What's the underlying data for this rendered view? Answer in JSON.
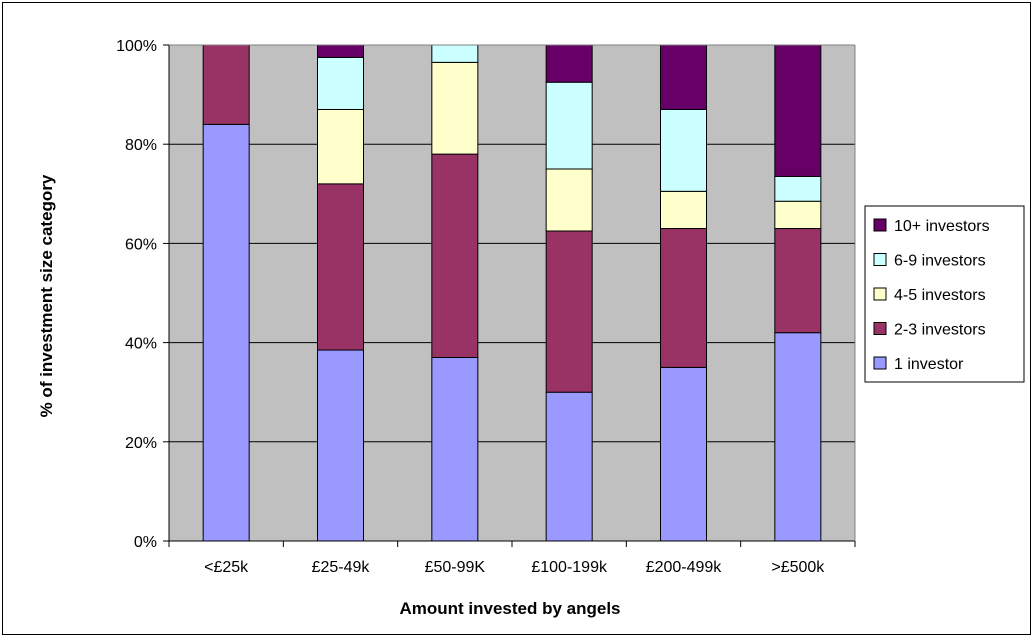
{
  "chart_data": {
    "type": "bar",
    "stacked": true,
    "title": "",
    "xlabel": "Amount invested by angels",
    "ylabel": "% of investment size category",
    "ylim": [
      0,
      100
    ],
    "y_ticks": [
      "0%",
      "20%",
      "40%",
      "60%",
      "80%",
      "100%"
    ],
    "grid": true,
    "legend_position": "right",
    "categories": [
      "<£25k",
      "£25-49k",
      "£50-99K",
      "£100-199k",
      "£200-499k",
      ">£500k"
    ],
    "series": [
      {
        "name": "1 investor",
        "color": "#9999FF",
        "values": [
          84,
          38.5,
          37,
          30,
          35,
          42
        ]
      },
      {
        "name": "2-3 investors",
        "color": "#993366",
        "values": [
          16,
          33.5,
          41,
          32.5,
          28,
          21
        ]
      },
      {
        "name": "4-5 investors",
        "color": "#FFFFCC",
        "values": [
          0,
          15,
          18.5,
          12.5,
          7.5,
          5.5
        ]
      },
      {
        "name": "6-9 investors",
        "color": "#CCFFFF",
        "values": [
          0,
          10.5,
          3.5,
          17.5,
          16.5,
          5
        ]
      },
      {
        "name": "10+ investors",
        "color": "#660066",
        "values": [
          0,
          2.5,
          0,
          7.5,
          13,
          26.5
        ]
      }
    ]
  }
}
